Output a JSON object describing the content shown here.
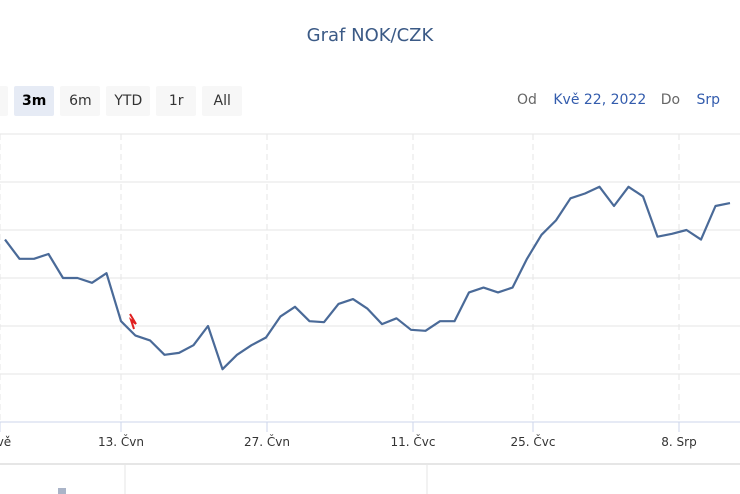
{
  "chart_data": {
    "type": "line",
    "title": "Graf NOK/CZK",
    "x_tick_labels": [
      "Kvě",
      "13. Čvn",
      "27. Čvn",
      "11. Čvc",
      "25. Čvc",
      "8. Srp"
    ],
    "series": [
      {
        "values": [
          2.64,
          2.62,
          2.62,
          2.625,
          2.6,
          2.6,
          2.595,
          2.605,
          2.555,
          2.54,
          2.535,
          2.52,
          2.522,
          2.53,
          2.55,
          2.505,
          2.52,
          2.53,
          2.538,
          2.56,
          2.57,
          2.555,
          2.554,
          2.573,
          2.578,
          2.568,
          2.552,
          2.558,
          2.546,
          2.545,
          2.555,
          2.555,
          2.585,
          2.59,
          2.585,
          2.59,
          2.62,
          2.645,
          2.66,
          2.683,
          2.688,
          2.695,
          2.675,
          2.695,
          2.685,
          2.643,
          2.646,
          2.65,
          2.64,
          2.675,
          2.678
        ]
      }
    ],
    "line_color": "#4a6a98",
    "grid": true
  },
  "range_selector": {
    "buttons": [
      "n",
      "3m",
      "6m",
      "YTD",
      "1r",
      "All"
    ],
    "selected": "3m"
  },
  "date_range": {
    "from_label": "Od",
    "from_value": "Kvě 22, 2022",
    "to_label": "Do",
    "to_value": "Srp"
  }
}
